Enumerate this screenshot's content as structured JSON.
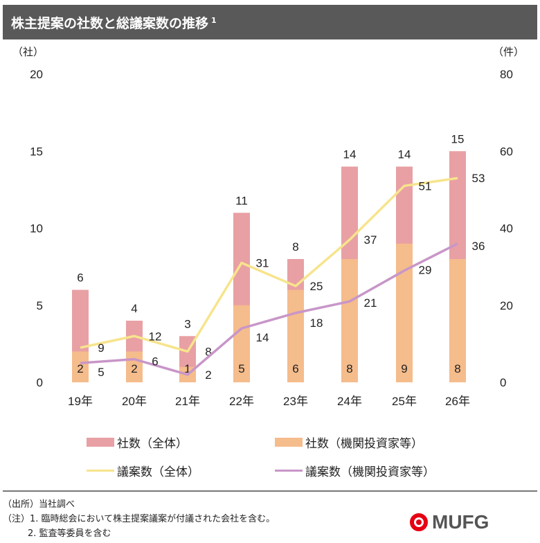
{
  "header": {
    "title": "株主提案の社数と総議案数の推移",
    "footnote_mark": "1"
  },
  "chart_data": {
    "type": "bar+line",
    "categories": [
      "19年",
      "20年",
      "21年",
      "22年",
      "23年",
      "24年",
      "25年",
      "26年"
    ],
    "left_axis": {
      "label": "（社）",
      "ylim": [
        0,
        20
      ],
      "ticks": [
        "0",
        "5",
        "10",
        "15",
        "20"
      ]
    },
    "right_axis": {
      "label": "（件）",
      "ylim": [
        0,
        80
      ],
      "ticks": [
        "0",
        "20",
        "40",
        "60",
        "80"
      ]
    },
    "series": [
      {
        "name": "社数（全体）",
        "type": "bar",
        "axis": "left",
        "color": "#e8a0a4",
        "values": [
          6,
          4,
          3,
          11,
          8,
          14,
          14,
          15
        ]
      },
      {
        "name": "社数（機関投資家等）",
        "type": "bar",
        "axis": "left",
        "color": "#f5bc8c",
        "values": [
          2,
          2,
          1,
          5,
          6,
          8,
          9,
          8
        ]
      },
      {
        "name": "議案数（全体）",
        "type": "line",
        "axis": "right",
        "color": "#f7e48c",
        "values": [
          9,
          12,
          8,
          31,
          25,
          37,
          51,
          53
        ]
      },
      {
        "name": "議案数（機関投資家等）",
        "type": "line",
        "axis": "right",
        "color": "#c896c8",
        "values": [
          5,
          6,
          2,
          14,
          18,
          21,
          29,
          36
        ]
      }
    ],
    "legend": "bottom",
    "grid": false
  },
  "notes": {
    "source": "（出所）当社調べ",
    "note1": "（注）1. 臨時総会において株主提案議案が付議された会社を含む。",
    "note2": "2. 監査等委員を含む"
  },
  "logo": {
    "text": "MUFG"
  }
}
